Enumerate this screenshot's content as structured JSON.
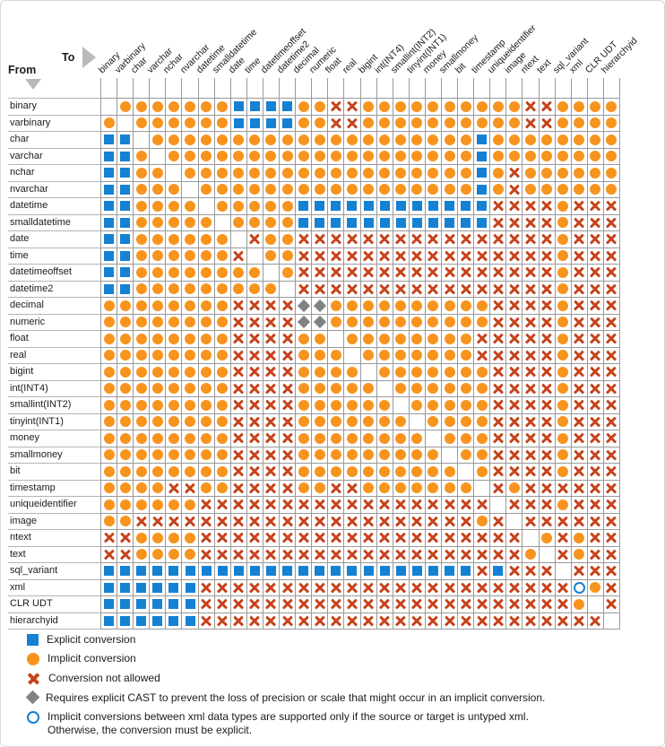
{
  "corner": {
    "to_label": "To",
    "from_label": "From"
  },
  "colors": {
    "explicit_blue": "#1581d3",
    "implicit_orange": "#f7941e",
    "not_allowed_red": "#c6431c",
    "diamond_gray": "#808285",
    "grid_line": "#9a9a9a",
    "label_line": "#b5b5b5",
    "triangle_gray": "#b9b9b9",
    "text": "#1b1b1b"
  },
  "legend": {
    "items": [
      {
        "icon": "explicit-square",
        "label": "Explicit conversion"
      },
      {
        "icon": "implicit-circle",
        "label": "Implicit conversion"
      },
      {
        "icon": "not-allowed-x",
        "label": "Conversion not allowed"
      },
      {
        "icon": "cast-diamond",
        "label": "Requires explicit CAST to prevent the loss of precision or scale that might occur in an implicit conversion."
      },
      {
        "icon": "xml-open-circle",
        "label": "Implicit conversions between xml data types are supported only if the source or target is untyped xml.",
        "label_line2": "Otherwise, the conversion must be explicit."
      }
    ]
  },
  "chart_data": {
    "type": "heatmap",
    "title": "SQL Server data type conversion chart (From row type To column type)",
    "axis": {
      "rows_label": "From",
      "columns_label": "To"
    },
    "types": [
      "binary",
      "varbinary",
      "char",
      "varchar",
      "nchar",
      "nvarchar",
      "datetime",
      "smalldatetime",
      "date",
      "time",
      "datetimeoffset",
      "datetime2",
      "decimal",
      "numeric",
      "float",
      "real",
      "bigint",
      "int(INT4)",
      "smallint(INT2)",
      "tinyint(INT1)",
      "money",
      "smallmoney",
      "bit",
      "timestamp",
      "uniqueidentifier",
      "image",
      "ntext",
      "text",
      "sql_variant",
      "xml",
      "CLR UDT",
      "hierarchyid"
    ],
    "cell_codes": {
      "E": "explicit_conversion",
      "I": "implicit_conversion",
      "X": "conversion_not_allowed",
      "D": "requires_explicit_cast",
      "O": "xml_untyped_only",
      ".": "same_type_blank"
    },
    "matrix": [
      ".IIIIIIIEEEEIIXXIIIIIIIIIIXXIIII",
      "I.IIIIIIEEEEIIXXIIIIIIIIIIXXIIII",
      "EE.IIIIIIIIIIIIIIIIIIIIEIIIIIIII",
      "EEI.IIIIIIIIIIIIIIIIIIIEIIIIIIII",
      "EEII.IIIIIIIIIIIIIIIIIIEIXIIIIII",
      "EEIII.IIIIIIIIIIIIIIIIIEIXIIIIII",
      "EEIIII.IIIIIEEEEEEEEEEEEXXXXIXXX",
      "EEIIIII.IIIIEEEEEEEEEEEEXXXXIXXX",
      "EEIIIIII.XIIXXXXXXXXXXXXXXXXIXXX",
      "EEIIIIIIX.IIXXXXXXXXXXXXXXXXIXXX",
      "EEIIIIIIII.IXXXXXXXXXXXXXXXXIXXX",
      "EEIIIIIIIII.XXXXXXXXXXXXXXXXIXXX",
      "IIIIIIIIXXXXDDIIIIIIIIIIXXXXIXXX",
      "IIIIIIIIXXXXDDIIIIIIIIIIXXXXIXXX",
      "IIIIIIIIXXXXII.IIIIIIIIXXXXXIXXX",
      "IIIIIIIIXXXXIII.IIIIIIIXXXXXIXXX",
      "IIIIIIIIXXXXIIII.IIIIIIIXXXXIXXX",
      "IIIIIIIIXXXXIIIII.IIIIIIXXXXIXXX",
      "IIIIIIIIXXXXIIIIII.IIIIIXXXXIXXX",
      "IIIIIIIIXXXXIIIIIII.IIIIXXXXIXXX",
      "IIIIIIIIXXXXIIIIIIII.IIIXXXXIXXX",
      "IIIIIIIIXXXXIIIIIIIII.IIXXXXIXXX",
      "IIIIIIIIXXXXIIIIIIIIII.IXXXXIXXX",
      "IIIIXXIIXXXXIIXXIIIIIII.XIXXXXXX",
      "IIIIIIXXXXXXXXXXXXXXXXXX.XXXIXXX",
      "IIXXXXXXXXXXXXXXXXXXXXXIX.XXXXXX",
      "XXIIIIXXXXXXXXXXXXXXXXXXXX.IXIXX",
      "XXIIIIXXXXXXXXXXXXXXXXXXXXI.XIXX",
      "EEEEEEEEEEEEEEEEEEEEEEEXEXXX.XXX",
      "EEEEEEXXXXXXXXXXXXXXXXXXXXXXXOIX",
      "EEEEEEXXXXXXXXXXXXXXXXXXXXXXXI.X",
      "EEEEEEXXXXXXXXXXXXXXXXXXXXXXXXX."
    ]
  }
}
